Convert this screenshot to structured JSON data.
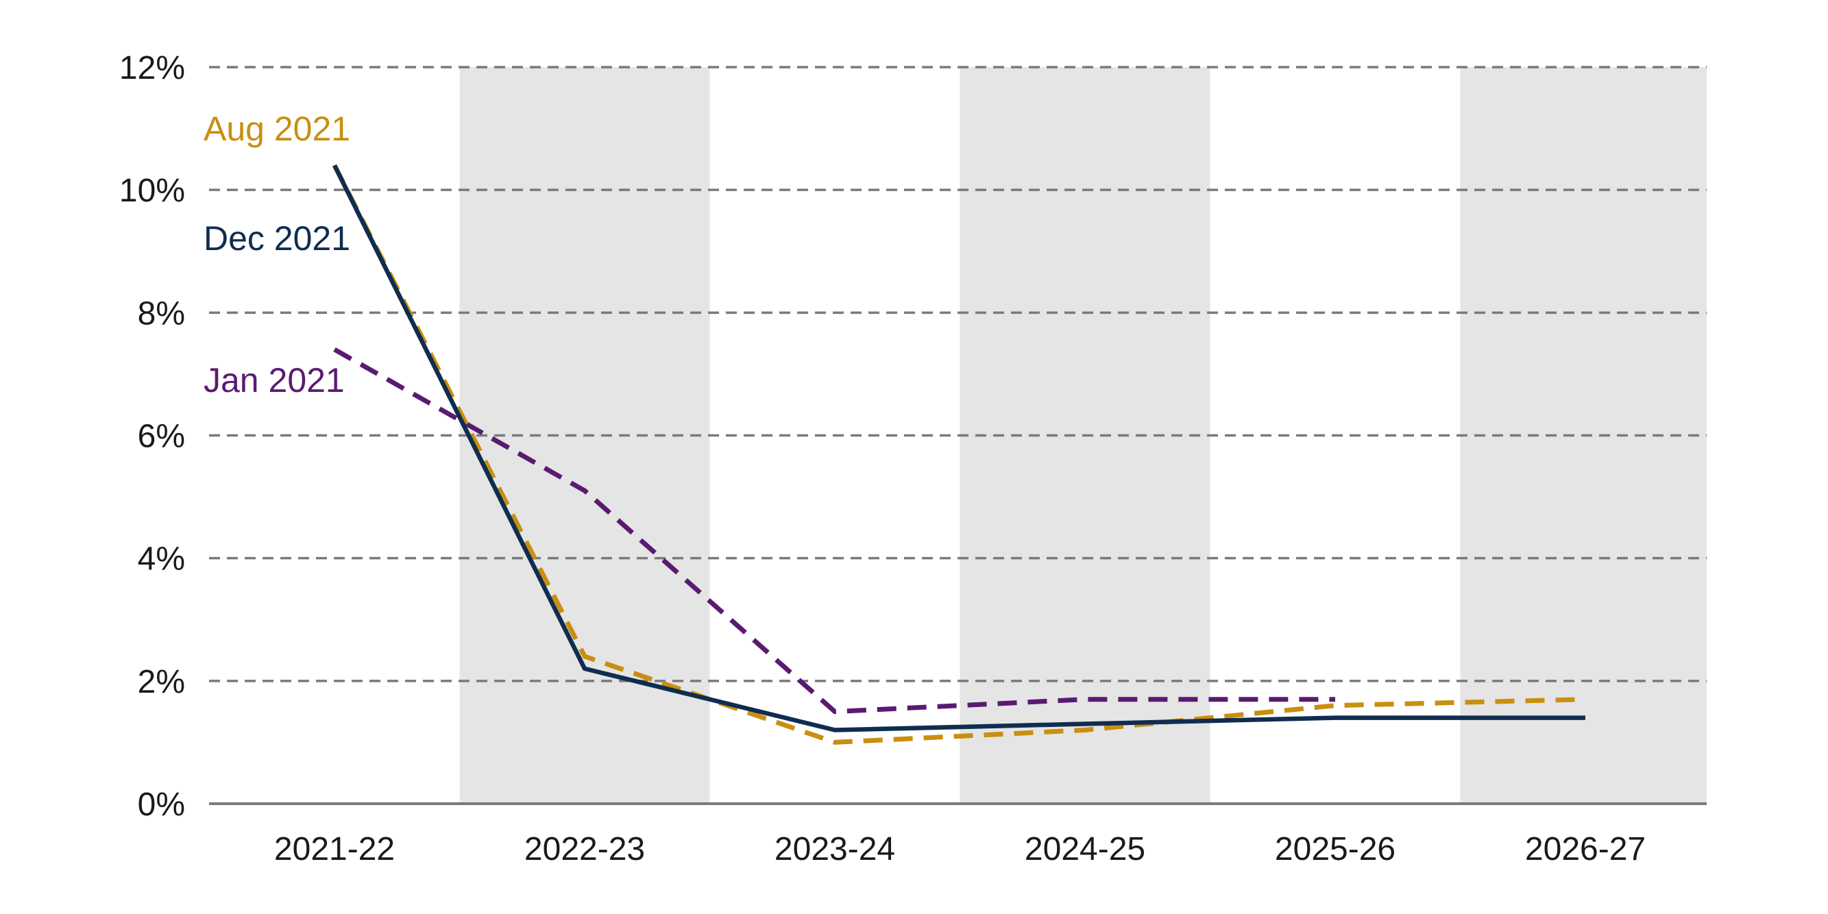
{
  "chart_data": {
    "type": "line",
    "title": "",
    "xlabel": "",
    "ylabel": "",
    "categories": [
      "2021-22",
      "2022-23",
      "2023-24",
      "2024-25",
      "2025-26",
      "2026-27"
    ],
    "ylim": [
      0,
      12
    ],
    "yticks": [
      0,
      2,
      4,
      6,
      8,
      10,
      12
    ],
    "ytick_labels": [
      "0%",
      "2%",
      "4%",
      "6%",
      "8%",
      "10%",
      "12%"
    ],
    "grid": true,
    "shaded_bands": [
      "2022-23",
      "2024-25",
      "2026-27"
    ],
    "colors": {
      "band": "#e5e5e5",
      "grid": "#7a7a7a",
      "axis": "#7a7a7a"
    },
    "series": [
      {
        "name": "Jan 2021",
        "color": "#5b1a72",
        "dashed": true,
        "values": [
          7.4,
          5.1,
          1.5,
          1.7,
          1.7,
          null
        ]
      },
      {
        "name": "Aug 2021",
        "color": "#c98f10",
        "dashed": true,
        "values": [
          10.4,
          2.4,
          1.0,
          1.2,
          1.6,
          1.7
        ]
      },
      {
        "name": "Dec 2021",
        "color": "#0f2d4f",
        "dashed": false,
        "values": [
          10.4,
          2.2,
          1.2,
          1.3,
          1.4,
          1.4
        ]
      }
    ]
  }
}
